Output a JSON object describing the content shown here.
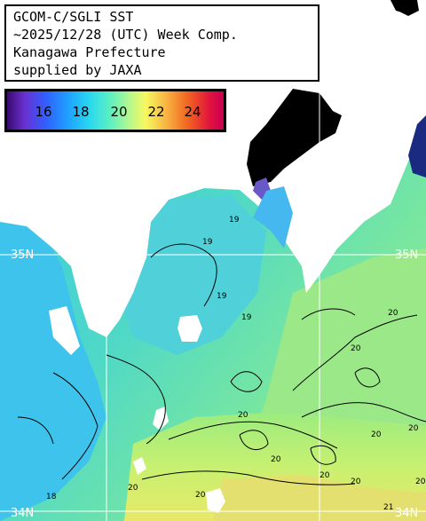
{
  "title": {
    "line1": "GCOM-C/SGLI SST",
    "line2": "~2025/12/28 (UTC) Week Comp.",
    "line3": "Kanagawa Prefecture",
    "line4": "supplied by JAXA"
  },
  "legend": {
    "labels": [
      "16",
      "18",
      "20",
      "22",
      "24"
    ],
    "unit_range": [
      15,
      25
    ]
  },
  "map": {
    "lat_labels": {
      "left_35": "35N",
      "right_35": "35N",
      "left_34": "34N",
      "right_34": "34N"
    },
    "contour_labels": [
      "19",
      "19",
      "19",
      "19",
      "20",
      "20",
      "20",
      "20",
      "20",
      "20",
      "20",
      "20",
      "20",
      "18",
      "20",
      "21",
      "20"
    ],
    "colors": {
      "land": "#ffffff",
      "no_data": "#000000",
      "cool_water": "#3cc8e8",
      "mid_water": "#5ee0b0",
      "warm_water": "#a8ec78",
      "warmer_water": "#e8e060",
      "contour": "#000000",
      "grid": "#ffffff"
    }
  }
}
